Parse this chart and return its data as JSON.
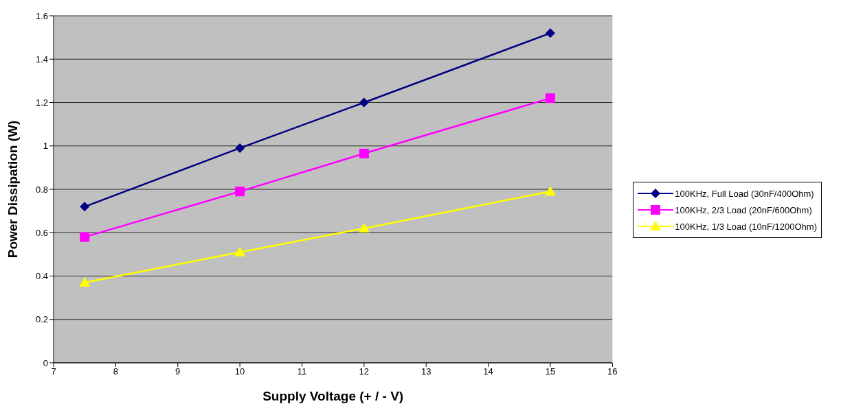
{
  "chart_data": {
    "type": "line",
    "xlabel": "Supply Voltage (+ / - V)",
    "ylabel": "Power Dissipation (W)",
    "x": [
      7.5,
      10,
      12,
      15
    ],
    "series": [
      {
        "name": "100KHz, Full Load (30nF/400Ohm)",
        "color": "#000080",
        "marker": "diamond",
        "values": [
          0.72,
          0.99,
          1.2,
          1.52
        ]
      },
      {
        "name": "100KHz, 2/3 Load (20nF/600Ohm)",
        "color": "#ff00ff",
        "marker": "square",
        "values": [
          0.58,
          0.79,
          0.965,
          1.22
        ]
      },
      {
        "name": "100KHz, 1/3 Load (10nF/1200Ohm)",
        "color": "#ffff00",
        "marker": "triangle",
        "values": [
          0.37,
          0.51,
          0.62,
          0.79
        ]
      }
    ],
    "xlim": [
      7,
      16
    ],
    "xticks": [
      7,
      8,
      9,
      10,
      11,
      12,
      13,
      14,
      15,
      16
    ],
    "ylim": [
      0,
      1.6
    ],
    "yticks": [
      0,
      0.2,
      0.4,
      0.6,
      0.8,
      1,
      1.2,
      1.4,
      1.6
    ],
    "grid": "y",
    "legend": "right",
    "line_style": "solid"
  }
}
